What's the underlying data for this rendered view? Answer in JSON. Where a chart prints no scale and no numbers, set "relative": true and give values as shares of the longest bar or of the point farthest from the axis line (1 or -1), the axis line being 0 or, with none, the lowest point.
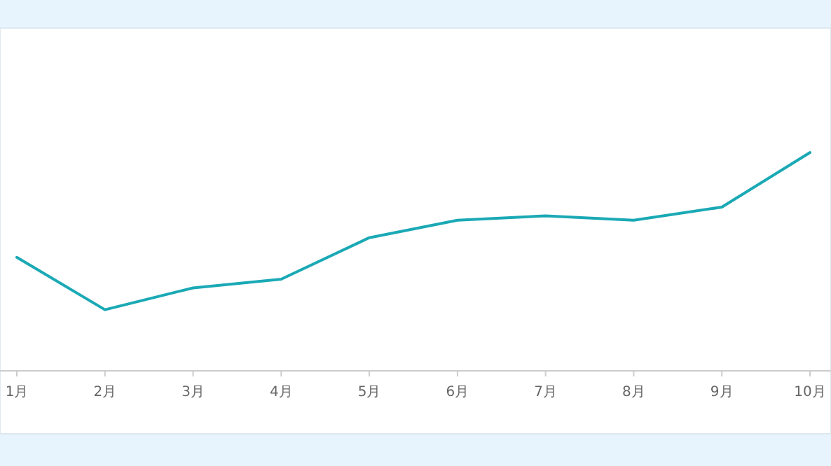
{
  "chart_data": {
    "type": "line",
    "relative": true,
    "categories": [
      "1月",
      "2月",
      "3月",
      "4月",
      "5月",
      "6月",
      "7月",
      "8月",
      "9月",
      "10月"
    ],
    "series": [
      {
        "color": "#1aa9b5",
        "values": [
          0.52,
          0.28,
          0.38,
          0.42,
          0.61,
          0.69,
          0.71,
          0.69,
          0.75,
          1
        ]
      }
    ]
  }
}
